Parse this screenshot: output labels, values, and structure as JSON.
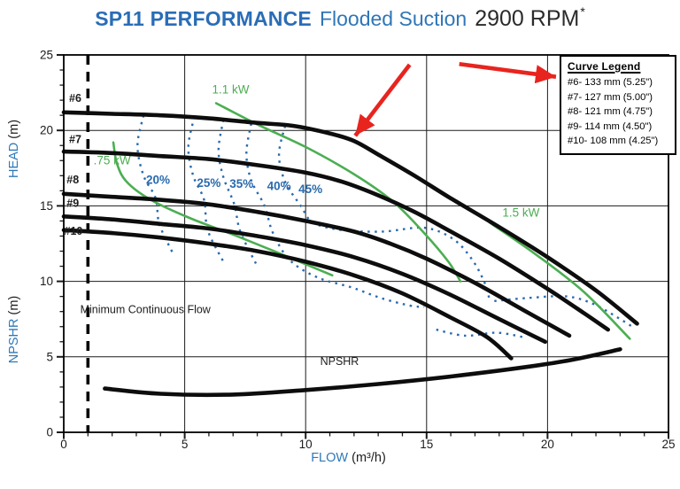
{
  "title": {
    "model": "SP11 PERFORMANCE",
    "subtitle": "Flooded Suction",
    "rpm": "2900 RPM",
    "footnote_marker": "*"
  },
  "legend": {
    "title": "Curve Legend",
    "entries": [
      "#6- 133 mm (5.25\")",
      "#7- 127 mm (5.00\")",
      "#8- 121 mm (4.75\")",
      "#9- 114 mm (4.50\")",
      "#10- 108 mm (4.25\")"
    ]
  },
  "axes": {
    "x": {
      "label_word": "FLOW",
      "label_unit": "(m³/h)",
      "min": 0,
      "max": 25,
      "major_ticks": [
        0,
        5,
        10,
        15,
        20,
        25
      ],
      "minor_step": 1
    },
    "y": {
      "label_word_head": "HEAD",
      "label_word_npshr": "NPSHR",
      "label_unit": "(m)",
      "min": 0,
      "max": 25,
      "major_ticks": [
        0,
        5,
        10,
        15,
        20,
        25
      ],
      "minor_step": 1
    }
  },
  "chart_data": {
    "type": "line",
    "title": "SP11 PERFORMANCE Flooded Suction 2900 RPM",
    "xlabel": "FLOW (m³/h)",
    "ylabel": "HEAD (m) / NPSHR (m)",
    "xlim": [
      0,
      25
    ],
    "ylim": [
      0,
      25
    ],
    "grid": true,
    "head_curves": [
      {
        "id": "curve-6",
        "name": "#6",
        "diameter": "133 mm (5.25\")",
        "label_xy": [
          0.22,
          21.9
        ],
        "points": [
          [
            0,
            21.2
          ],
          [
            2,
            21.1
          ],
          [
            4,
            21.0
          ],
          [
            6,
            20.8
          ],
          [
            8,
            20.5
          ],
          [
            9.5,
            20.3
          ],
          [
            11,
            19.8
          ],
          [
            12,
            19.3
          ],
          [
            13,
            18.4
          ],
          [
            14.5,
            17.0
          ],
          [
            16,
            15.5
          ],
          [
            18,
            13.6
          ],
          [
            20,
            11.6
          ],
          [
            22,
            9.4
          ],
          [
            23.7,
            7.2
          ]
        ]
      },
      {
        "id": "curve-7",
        "name": "#7",
        "diameter": "127 mm (5.00\")",
        "label_xy": [
          0.22,
          19.15
        ],
        "points": [
          [
            0,
            18.6
          ],
          [
            2,
            18.5
          ],
          [
            4,
            18.3
          ],
          [
            6,
            18.1
          ],
          [
            8,
            17.7
          ],
          [
            10,
            17.2
          ],
          [
            11.5,
            16.6
          ],
          [
            13,
            15.7
          ],
          [
            14.5,
            14.6
          ],
          [
            16,
            13.3
          ],
          [
            18,
            11.5
          ],
          [
            20,
            9.5
          ],
          [
            21.5,
            7.9
          ],
          [
            22.5,
            6.8
          ]
        ]
      },
      {
        "id": "curve-8",
        "name": "#8",
        "diameter": "121 mm (4.75\")",
        "label_xy": [
          0.12,
          16.5
        ],
        "points": [
          [
            0,
            15.8
          ],
          [
            2,
            15.6
          ],
          [
            4,
            15.4
          ],
          [
            6,
            15.1
          ],
          [
            8,
            14.6
          ],
          [
            10,
            14.0
          ],
          [
            12,
            13.3
          ],
          [
            13.5,
            12.5
          ],
          [
            15,
            11.5
          ],
          [
            17,
            9.9
          ],
          [
            19,
            8.1
          ],
          [
            20.9,
            6.4
          ]
        ]
      },
      {
        "id": "curve-9",
        "name": "#9",
        "diameter": "114 mm (4.50\")",
        "label_xy": [
          0.12,
          14.95
        ],
        "points": [
          [
            0,
            14.3
          ],
          [
            2,
            14.1
          ],
          [
            4,
            13.8
          ],
          [
            6,
            13.5
          ],
          [
            8,
            13.0
          ],
          [
            10,
            12.4
          ],
          [
            12,
            11.6
          ],
          [
            14,
            10.5
          ],
          [
            16,
            9.1
          ],
          [
            18,
            7.5
          ],
          [
            19.9,
            6.0
          ]
        ]
      },
      {
        "id": "curve-10",
        "name": "#10",
        "diameter": "108 mm (4.25\")",
        "label_xy": [
          0.02,
          13.1
        ],
        "points": [
          [
            0,
            13.4
          ],
          [
            2,
            13.2
          ],
          [
            4,
            12.9
          ],
          [
            6,
            12.5
          ],
          [
            8,
            12.0
          ],
          [
            10,
            11.3
          ],
          [
            12,
            10.4
          ],
          [
            14,
            9.2
          ],
          [
            16,
            7.6
          ],
          [
            17.5,
            6.3
          ],
          [
            18.5,
            4.9
          ]
        ]
      }
    ],
    "npshr_curve": {
      "label": "NPSHR",
      "label_xy": [
        10.6,
        4.45
      ],
      "points": [
        [
          1.7,
          2.9
        ],
        [
          4,
          2.55
        ],
        [
          7,
          2.5
        ],
        [
          10,
          2.8
        ],
        [
          13,
          3.2
        ],
        [
          16,
          3.7
        ],
        [
          19,
          4.3
        ],
        [
          21,
          4.8
        ],
        [
          23,
          5.5
        ]
      ]
    },
    "efficiency_contours": [
      {
        "id": "eff-20",
        "label": "20%",
        "label_xy": [
          3.9,
          16.45
        ],
        "points": [
          [
            3.3,
            21.0
          ],
          [
            3.05,
            19.0
          ],
          [
            3.3,
            17.0
          ],
          [
            3.8,
            15.5
          ],
          [
            3.95,
            13.8
          ],
          [
            4.5,
            11.9
          ]
        ]
      },
      {
        "id": "eff-25",
        "label": "25%",
        "label_xy": [
          6.0,
          16.25
        ],
        "points": [
          [
            5.4,
            20.9
          ],
          [
            5.15,
            18.9
          ],
          [
            5.35,
            17.0
          ],
          [
            5.8,
            15.4
          ],
          [
            5.95,
            13.4
          ],
          [
            6.6,
            11.3
          ]
        ]
      },
      {
        "id": "eff-35",
        "label": "35%",
        "label_xy": [
          7.35,
          16.2
        ],
        "points": [
          [
            6.6,
            20.7
          ],
          [
            6.4,
            18.7
          ],
          [
            6.6,
            16.9
          ],
          [
            7.05,
            15.1
          ],
          [
            7.3,
            13.3
          ],
          [
            8.0,
            11.0
          ]
        ]
      },
      {
        "id": "eff-40",
        "label": "40%",
        "label_xy": [
          8.9,
          16.05
        ],
        "points": [
          [
            7.75,
            20.45
          ],
          [
            7.55,
            18.5
          ],
          [
            7.75,
            16.7
          ],
          [
            8.3,
            15.0
          ],
          [
            8.65,
            13.2
          ],
          [
            9.35,
            11.4
          ],
          [
            10.5,
            10.25
          ],
          [
            11.9,
            9.6
          ],
          [
            13.1,
            8.9
          ],
          [
            14.3,
            8.4
          ],
          [
            14.9,
            8.3
          ]
        ]
      },
      {
        "id": "eff-45",
        "label": "45%",
        "label_xy": [
          10.2,
          15.85
        ],
        "points": [
          [
            9.15,
            20.3
          ],
          [
            8.9,
            18.4
          ],
          [
            9.15,
            16.6
          ],
          [
            9.8,
            15.0
          ],
          [
            10.3,
            13.9
          ],
          [
            11.5,
            13.4
          ],
          [
            13.2,
            13.3
          ],
          [
            14.9,
            13.55
          ],
          [
            16.1,
            12.8
          ],
          [
            16.9,
            11.4
          ],
          [
            17.4,
            9.9
          ],
          [
            17.6,
            8.8
          ]
        ]
      }
    ],
    "efficiency_fragments": [
      [
        [
          17.8,
          8.7
        ],
        [
          19.2,
          8.9
        ],
        [
          20.8,
          9.0
        ],
        [
          21.9,
          8.5
        ],
        [
          22.9,
          7.6
        ],
        [
          23.5,
          7.0
        ]
      ],
      [
        [
          15.4,
          6.8
        ],
        [
          16.6,
          6.4
        ],
        [
          17.9,
          6.6
        ],
        [
          19.0,
          6.3
        ]
      ]
    ],
    "power_lines": [
      {
        "id": "power-075",
        "label": ".75 kW",
        "label_xy": [
          2.0,
          17.75
        ],
        "points": [
          [
            2.05,
            19.2
          ],
          [
            2.2,
            17.8
          ],
          [
            2.6,
            16.6
          ],
          [
            3.6,
            15.4
          ],
          [
            5.2,
            14.2
          ],
          [
            7.0,
            13.1
          ],
          [
            9.0,
            11.8
          ],
          [
            11.1,
            10.4
          ]
        ]
      },
      {
        "id": "power-110",
        "label": "1.1 kW",
        "label_xy": [
          6.9,
          22.45
        ],
        "points": [
          [
            6.3,
            21.8
          ],
          [
            8.0,
            20.4
          ],
          [
            10.0,
            18.9
          ],
          [
            12.0,
            17.1
          ],
          [
            13.6,
            15.3
          ],
          [
            14.9,
            13.2
          ],
          [
            15.9,
            11.3
          ],
          [
            16.4,
            10.0
          ]
        ]
      },
      {
        "id": "power-150",
        "label": "1.5 kW",
        "label_xy": [
          18.9,
          14.3
        ],
        "points": [
          [
            17.6,
            13.9
          ],
          [
            19.5,
            11.8
          ],
          [
            21.5,
            9.3
          ],
          [
            23.4,
            6.2
          ]
        ]
      }
    ],
    "min_flow_line": {
      "x": 1,
      "label": "Minimum Continuous Flow",
      "label_xy": [
        0.68,
        7.9
      ]
    },
    "annotation_arrows": [
      {
        "id": "arrow-to-curve",
        "from": [
          14.3,
          24.35
        ],
        "to": [
          12.05,
          19.65
        ]
      },
      {
        "id": "arrow-to-legend",
        "from": [
          16.35,
          24.4
        ],
        "to": [
          20.35,
          23.55
        ]
      }
    ]
  },
  "colors": {
    "title_blue": "#2a6db6",
    "subtitle_blue": "#2f76b8",
    "rpm_dark": "#2b2b2b",
    "curve_black": "#0d0d0d",
    "grid_black": "#1b1b1b",
    "efficiency_blue": "#2a6aad",
    "power_green": "#4cae52",
    "arrow_red": "#e8241f",
    "axis_label_blue": "#2e79b8",
    "text_dark": "#1c1c1c"
  }
}
